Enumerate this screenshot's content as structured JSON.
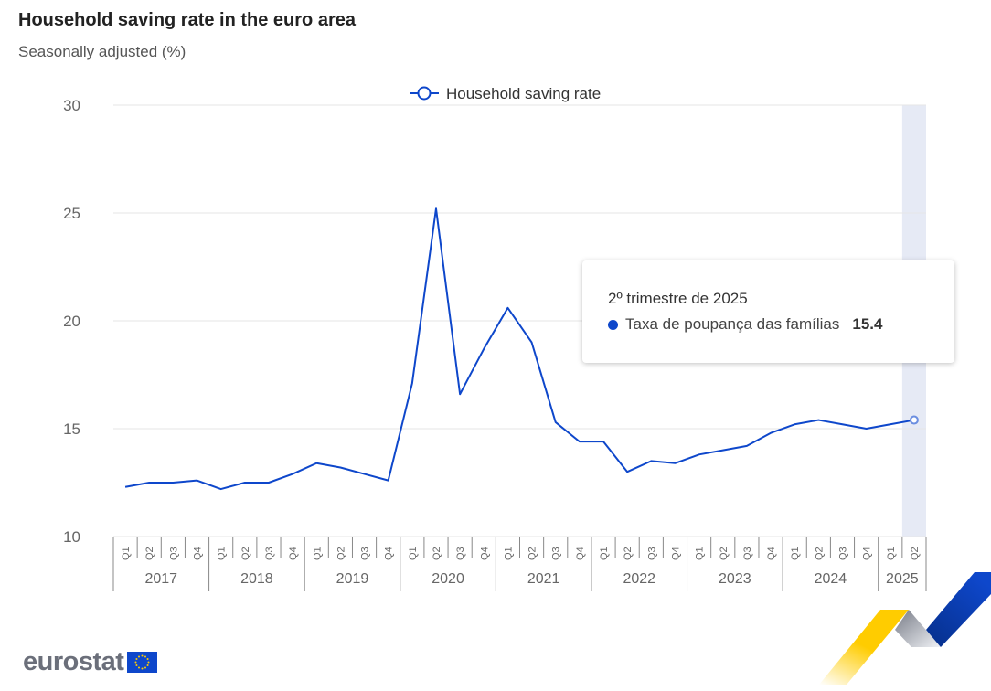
{
  "header": {
    "title": "Household saving rate in the euro area",
    "subtitle": "Seasonally adjusted (%)"
  },
  "tooltip": {
    "period": "2º trimestre de 2025",
    "series": "Taxa de poupança das famílias",
    "value": "15.4"
  },
  "logo": {
    "text": "eurostat"
  },
  "colors": {
    "line": "#0e47cb",
    "highlight": "#e6eaf5",
    "grid": "#e6e6e6"
  },
  "chart_data": {
    "type": "line",
    "title": "Household saving rate in the euro area",
    "subtitle": "Seasonally adjusted (%)",
    "legend": [
      "Household saving rate"
    ],
    "legend_position": "top-center",
    "ylim": [
      10,
      30
    ],
    "yticks": [
      10,
      15,
      20,
      25,
      30
    ],
    "years": [
      "2017",
      "2018",
      "2019",
      "2020",
      "2021",
      "2022",
      "2023",
      "2024",
      "2025"
    ],
    "quarters": [
      "Q1",
      "Q2",
      "Q3",
      "Q4"
    ],
    "x": [
      "2017Q1",
      "2017Q2",
      "2017Q3",
      "2017Q4",
      "2018Q1",
      "2018Q2",
      "2018Q3",
      "2018Q4",
      "2019Q1",
      "2019Q2",
      "2019Q3",
      "2019Q4",
      "2020Q1",
      "2020Q2",
      "2020Q3",
      "2020Q4",
      "2021Q1",
      "2021Q2",
      "2021Q3",
      "2021Q4",
      "2022Q1",
      "2022Q2",
      "2022Q3",
      "2022Q4",
      "2023Q1",
      "2023Q2",
      "2023Q3",
      "2023Q4",
      "2024Q1",
      "2024Q2",
      "2024Q3",
      "2024Q4",
      "2025Q1",
      "2025Q2"
    ],
    "series": [
      {
        "name": "Household saving rate",
        "values": [
          12.3,
          12.5,
          12.5,
          12.6,
          12.2,
          12.5,
          12.5,
          12.9,
          13.4,
          13.2,
          12.9,
          12.6,
          17.1,
          25.2,
          16.6,
          18.7,
          20.6,
          19.0,
          15.3,
          14.4,
          14.4,
          13.0,
          13.5,
          13.4,
          13.8,
          14.0,
          14.2,
          14.8,
          15.2,
          15.4,
          15.2,
          15.0,
          15.2,
          15.4
        ]
      }
    ],
    "highlighted": "2025Q2"
  }
}
